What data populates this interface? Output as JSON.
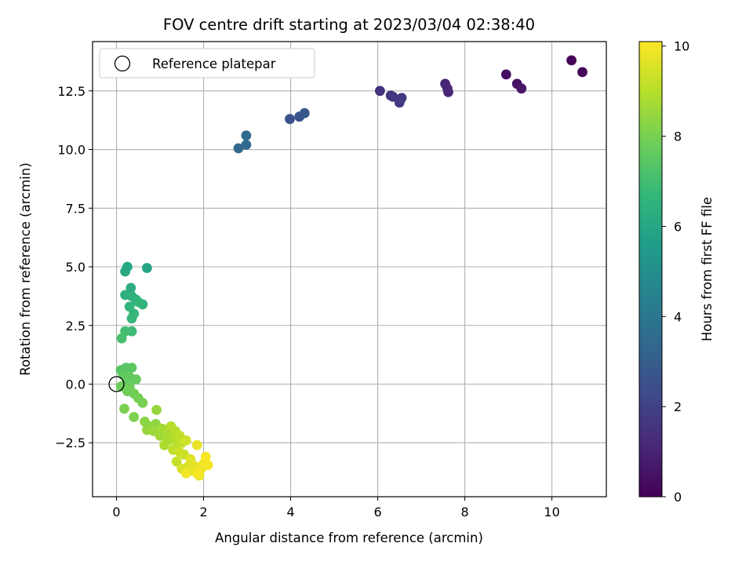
{
  "chart_data": {
    "type": "scatter",
    "title": "FOV centre drift starting at 2023/03/04 02:38:40",
    "xlabel": "Angular distance from reference (arcmin)",
    "ylabel": "Rotation from reference (arcmin)",
    "xlim": [
      -0.55,
      11.25
    ],
    "ylim": [
      -4.8,
      14.6
    ],
    "xticks": [
      0,
      2,
      4,
      6,
      8,
      10
    ],
    "yticks": [
      -2.5,
      0.0,
      2.5,
      5.0,
      7.5,
      10.0,
      12.5
    ],
    "xtick_labels": [
      "0",
      "2",
      "4",
      "6",
      "8",
      "10"
    ],
    "ytick_labels": [
      "−2.5",
      "0.0",
      "2.5",
      "5.0",
      "7.5",
      "10.0",
      "12.5"
    ],
    "grid": true,
    "legend": {
      "placement": "upper-left",
      "entries": [
        "Reference platepar"
      ]
    },
    "reference_point": {
      "name": "Reference platepar",
      "x": 0,
      "y": 0
    },
    "colorbar": {
      "label": "Hours from first FF file",
      "min": 0,
      "max": 10.1,
      "ticks": [
        0,
        2,
        4,
        6,
        8,
        10
      ],
      "tick_labels": [
        "0",
        "2",
        "4",
        "6",
        "8",
        "10"
      ],
      "colormap": "viridis"
    },
    "colormap_stops": [
      "#440154",
      "#482878",
      "#3e4989",
      "#31688e",
      "#26828e",
      "#1f9e89",
      "#35b779",
      "#6ece58",
      "#b5de2b",
      "#fde725"
    ],
    "points": [
      [
        10.45,
        13.8,
        0.1
      ],
      [
        10.7,
        13.3,
        0.2
      ],
      [
        8.95,
        13.2,
        0.4
      ],
      [
        9.2,
        12.8,
        0.5
      ],
      [
        9.3,
        12.6,
        0.6
      ],
      [
        7.55,
        12.8,
        1.0
      ],
      [
        7.6,
        12.6,
        1.05
      ],
      [
        7.62,
        12.45,
        1.1
      ],
      [
        6.05,
        12.5,
        1.5
      ],
      [
        6.3,
        12.3,
        1.6
      ],
      [
        6.35,
        12.25,
        1.65
      ],
      [
        6.5,
        12.0,
        1.7
      ],
      [
        6.55,
        12.2,
        1.75
      ],
      [
        3.98,
        11.3,
        2.6
      ],
      [
        4.2,
        11.4,
        2.7
      ],
      [
        4.32,
        11.55,
        2.8
      ],
      [
        2.8,
        10.05,
        3.4
      ],
      [
        2.98,
        10.2,
        3.5
      ],
      [
        2.98,
        10.6,
        3.55
      ],
      [
        0.7,
        4.95,
        5.9
      ],
      [
        0.25,
        5.0,
        6.0
      ],
      [
        0.2,
        4.8,
        6.1
      ],
      [
        0.33,
        4.1,
        6.3
      ],
      [
        0.2,
        3.8,
        6.4
      ],
      [
        0.35,
        3.75,
        6.45
      ],
      [
        0.45,
        3.6,
        6.5
      ],
      [
        0.6,
        3.4,
        6.55
      ],
      [
        0.3,
        3.3,
        6.6
      ],
      [
        0.5,
        3.5,
        6.65
      ],
      [
        0.4,
        3.0,
        6.7
      ],
      [
        0.35,
        2.8,
        6.75
      ],
      [
        0.35,
        2.25,
        6.9
      ],
      [
        0.2,
        2.25,
        7.0
      ],
      [
        0.12,
        1.95,
        7.1
      ],
      [
        0.1,
        0.6,
        7.4
      ],
      [
        0.22,
        0.7,
        7.45
      ],
      [
        0.35,
        0.7,
        7.5
      ],
      [
        0.15,
        0.4,
        7.55
      ],
      [
        0.3,
        0.3,
        7.6
      ],
      [
        0.45,
        0.2,
        7.65
      ],
      [
        0.2,
        0.0,
        7.7
      ],
      [
        0.3,
        -0.1,
        7.75
      ],
      [
        0.1,
        -0.1,
        7.8
      ],
      [
        0.25,
        -0.3,
        7.85
      ],
      [
        0.4,
        -0.4,
        7.9
      ],
      [
        0.5,
        -0.6,
        7.95
      ],
      [
        0.6,
        -0.8,
        8.0
      ],
      [
        0.18,
        -1.05,
        8.05
      ],
      [
        0.4,
        -1.4,
        8.1
      ],
      [
        0.65,
        -1.6,
        8.3
      ],
      [
        0.75,
        -1.8,
        8.35
      ],
      [
        0.9,
        -1.7,
        8.4
      ],
      [
        0.7,
        -1.95,
        8.45
      ],
      [
        0.92,
        -1.1,
        8.5
      ],
      [
        0.85,
        -2.0,
        8.6
      ],
      [
        1.0,
        -2.2,
        8.65
      ],
      [
        1.05,
        -1.9,
        8.7
      ],
      [
        1.15,
        -2.1,
        8.75
      ],
      [
        1.2,
        -2.4,
        8.8
      ],
      [
        1.1,
        -2.6,
        8.85
      ],
      [
        1.3,
        -2.3,
        8.9
      ],
      [
        1.35,
        -2.0,
        8.95
      ],
      [
        1.25,
        -1.8,
        9.0
      ],
      [
        1.4,
        -2.6,
        9.05
      ],
      [
        1.3,
        -2.8,
        9.1
      ],
      [
        1.45,
        -2.2,
        9.15
      ],
      [
        1.5,
        -2.5,
        9.2
      ],
      [
        1.38,
        -3.3,
        9.25
      ],
      [
        1.55,
        -3.0,
        9.3
      ],
      [
        1.45,
        -2.9,
        9.35
      ],
      [
        1.6,
        -2.4,
        9.4
      ],
      [
        1.5,
        -3.6,
        9.5
      ],
      [
        1.65,
        -3.5,
        9.55
      ],
      [
        1.75,
        -3.7,
        9.6
      ],
      [
        1.7,
        -3.2,
        9.65
      ],
      [
        1.8,
        -3.5,
        9.7
      ],
      [
        1.85,
        -2.6,
        9.75
      ],
      [
        1.9,
        -3.9,
        9.8
      ],
      [
        1.95,
        -3.6,
        9.85
      ],
      [
        2.0,
        -3.4,
        9.9
      ],
      [
        2.1,
        -3.45,
        9.95
      ],
      [
        1.85,
        -3.8,
        10.0
      ],
      [
        2.05,
        -3.1,
        10.0
      ],
      [
        1.6,
        -3.8,
        9.9
      ]
    ]
  }
}
